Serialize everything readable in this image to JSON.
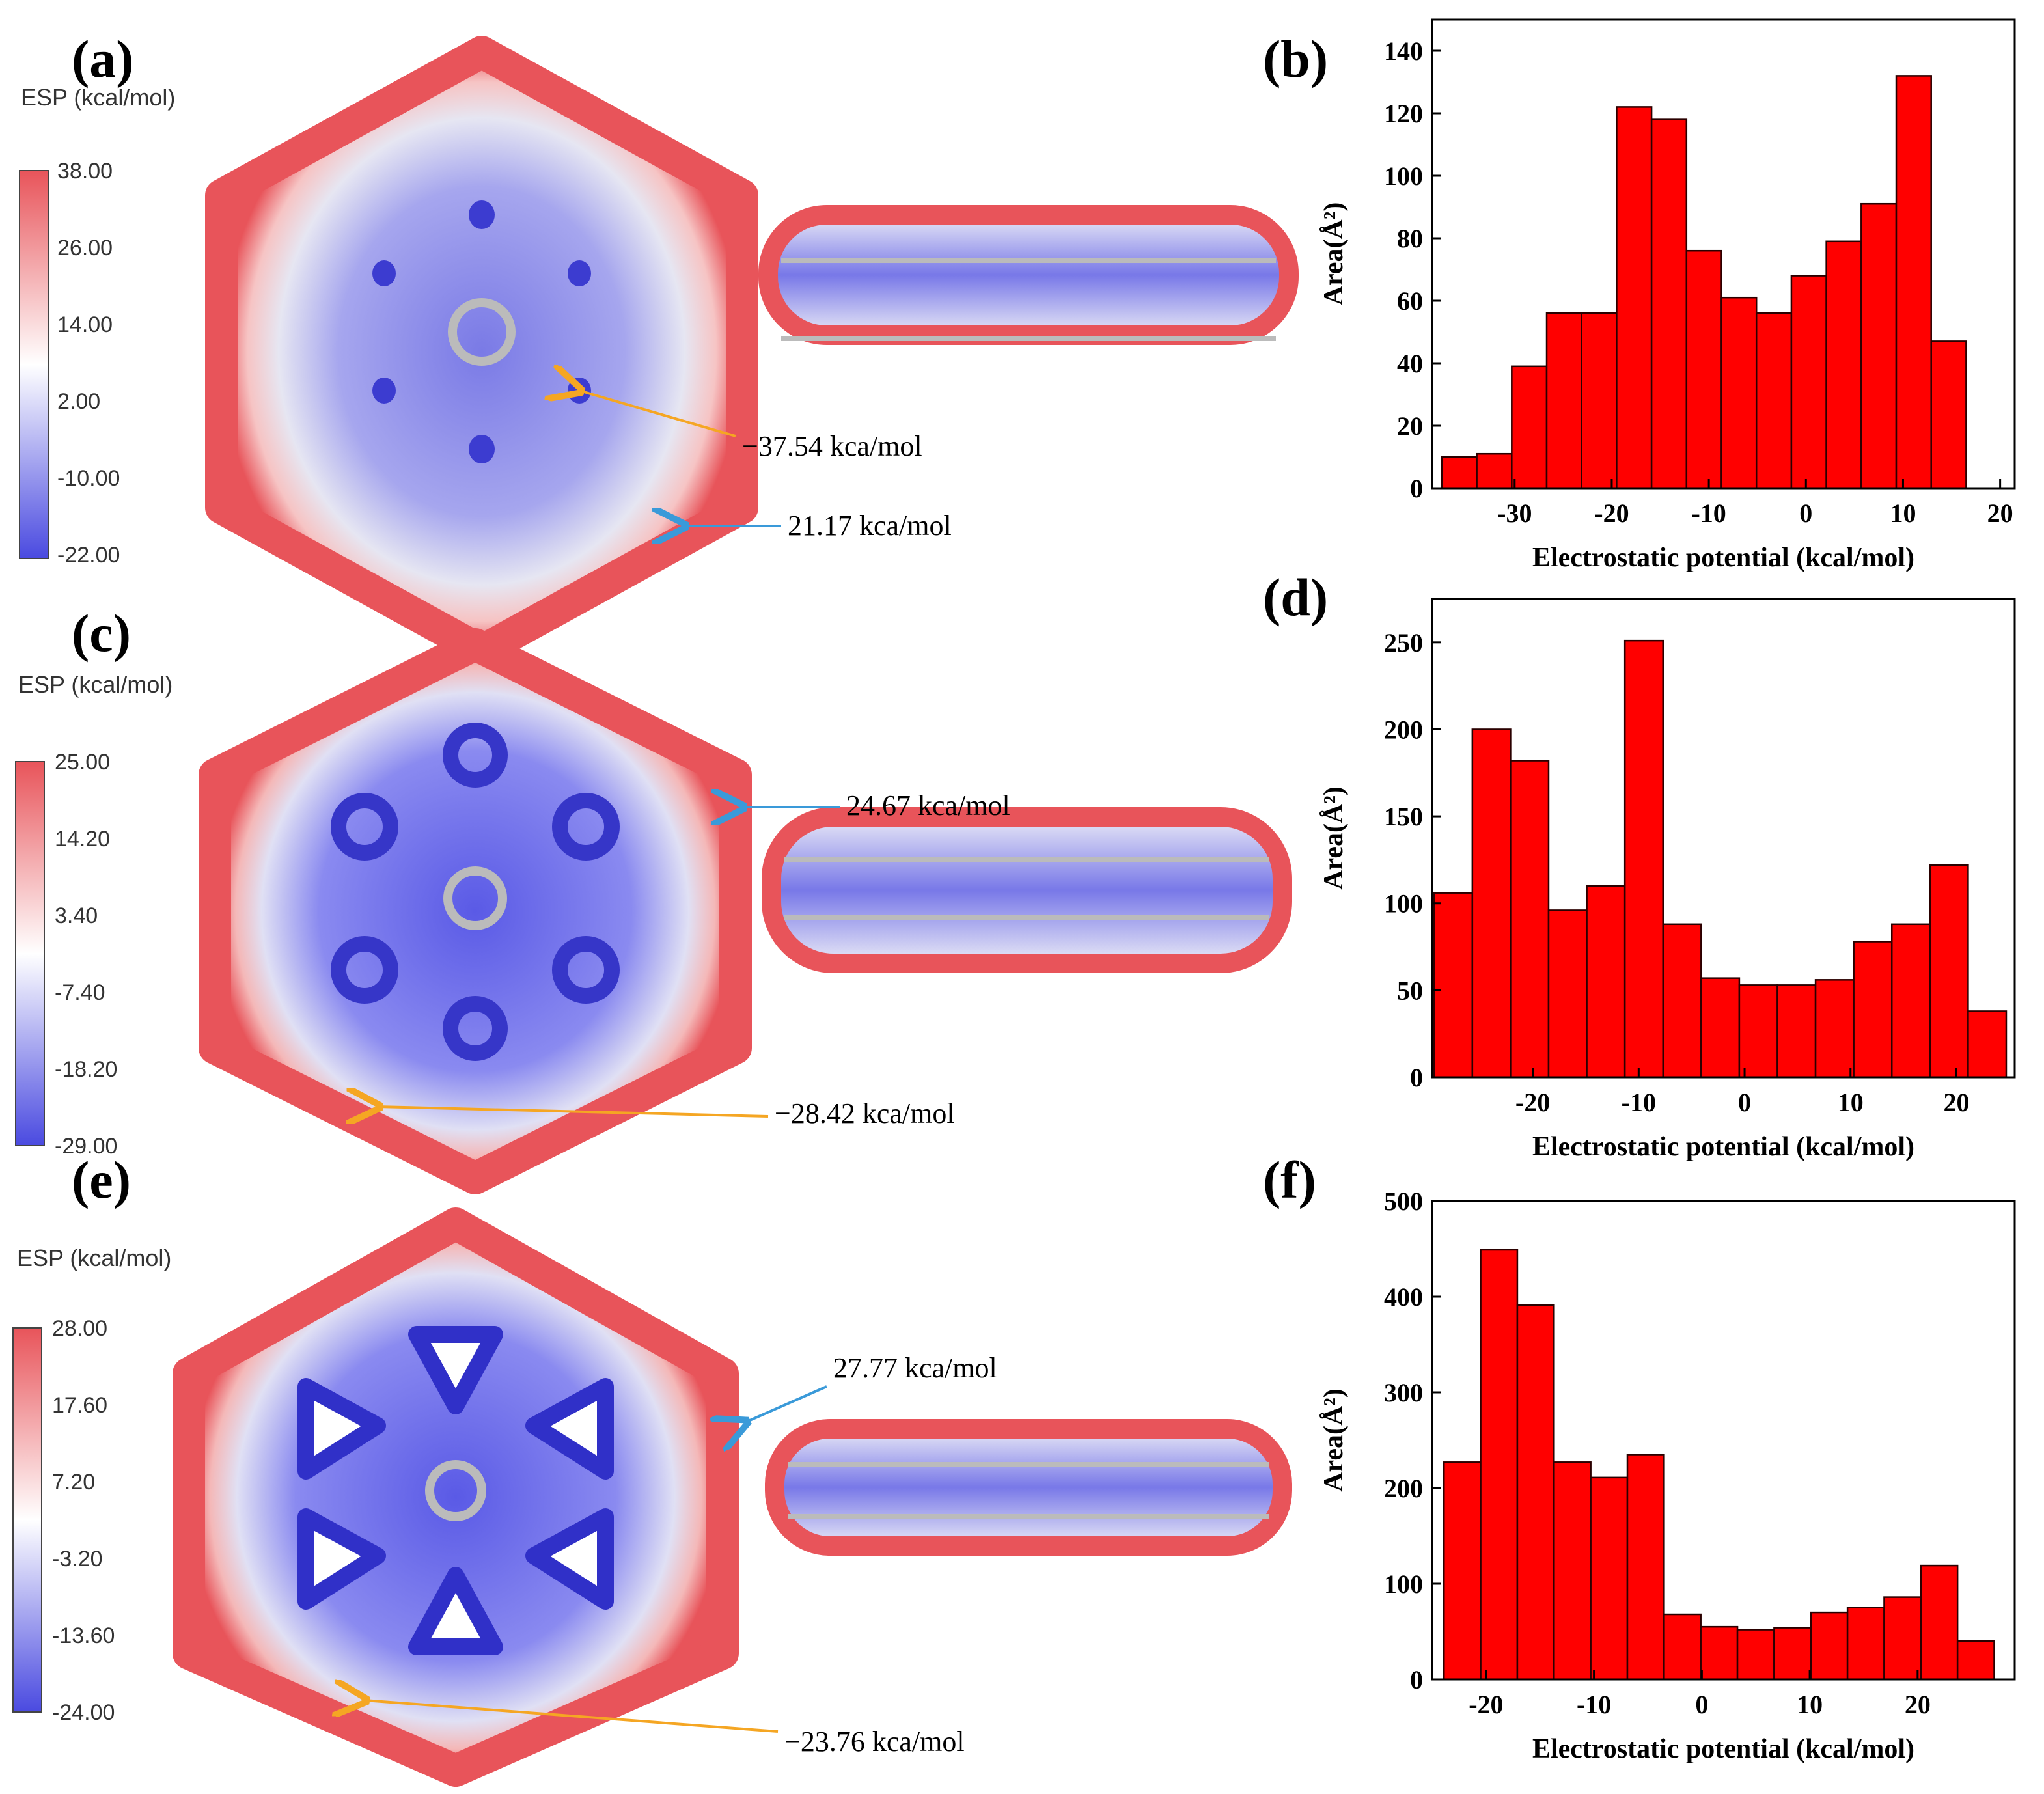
{
  "panels": [
    {
      "letter": "(a)",
      "colorbar": {
        "title": "ESP (kcal/mol)",
        "ticks": [
          "38.00",
          "26.00",
          "14.00",
          "2.00",
          "-10.00",
          "-22.00"
        ]
      },
      "annotations": [
        "−37.54 kca/mol",
        "21.17 kca/mol"
      ]
    },
    {
      "letter": "(c)",
      "colorbar": {
        "title": "ESP (kcal/mol)",
        "ticks": [
          "25.00",
          "14.20",
          "3.40",
          "-7.40",
          "-18.20",
          "-29.00"
        ]
      },
      "annotations": [
        "24.67 kca/mol",
        "−28.42 kca/mol"
      ]
    },
    {
      "letter": "(e)",
      "colorbar": {
        "title": "ESP (kcal/mol)",
        "ticks": [
          "28.00",
          "17.60",
          "7.20",
          "-3.20",
          "-13.60",
          "-24.00"
        ]
      },
      "annotations": [
        "27.77 kca/mol",
        "−23.76 kca/mol"
      ]
    }
  ],
  "colors": {
    "bar_fill": "#ff0000",
    "bar_stroke": "#2a0000",
    "esp_positive": "#e8545a",
    "esp_neutral": "#ffffff",
    "esp_negative": "#4a4ae0",
    "arrow_orange": "#f5a623",
    "arrow_blue": "#3a9ad9"
  },
  "chart_data": [
    {
      "panel": "(b)",
      "type": "bar",
      "xlabel": "Electrostatic potential (kcal/mol)",
      "ylabel": "Area(Å²)",
      "xlim": [
        -38.5,
        21.5
      ],
      "ylim": [
        0,
        150
      ],
      "xticks": [
        -30,
        -20,
        -10,
        0,
        10,
        20
      ],
      "yticks": [
        0,
        20,
        40,
        60,
        80,
        100,
        120,
        140
      ],
      "bin_width": 3.6,
      "x": [
        -35.7,
        -32.1,
        -28.5,
        -24.9,
        -21.3,
        -17.7,
        -14.1,
        -10.5,
        -6.9,
        -3.3,
        0.3,
        3.9,
        7.5,
        11.1,
        14.7,
        18.3
      ],
      "values": [
        10,
        11,
        39,
        56,
        56,
        122,
        118,
        76,
        61,
        56,
        68,
        79,
        91,
        132,
        47,
        0
      ]
    },
    {
      "panel": "(d)",
      "type": "bar",
      "xlabel": "Electrostatic potential (kcal/mol)",
      "ylabel": "Area(Å²)",
      "xlim": [
        -29.5,
        25.5
      ],
      "ylim": [
        0,
        275
      ],
      "xticks": [
        -20,
        -10,
        0,
        10,
        20
      ],
      "yticks": [
        0,
        50,
        100,
        150,
        200,
        250
      ],
      "bin_width": 3.6,
      "x": [
        -27.5,
        -23.9,
        -20.3,
        -16.7,
        -13.1,
        -9.5,
        -5.9,
        -2.3,
        1.3,
        4.9,
        8.5,
        12.1,
        15.7,
        19.3,
        22.9
      ],
      "values": [
        106,
        200,
        182,
        96,
        110,
        251,
        88,
        57,
        53,
        53,
        56,
        78,
        88,
        122,
        38
      ]
    },
    {
      "panel": "(f)",
      "type": "bar",
      "xlabel": "Electrostatic potential (kcal/mol)",
      "ylabel": "Area(Å²)",
      "xlim": [
        -25,
        29
      ],
      "ylim": [
        0,
        500
      ],
      "xticks": [
        -20,
        -10,
        0,
        10,
        20
      ],
      "yticks": [
        0,
        100,
        200,
        300,
        400,
        500
      ],
      "bin_width": 3.4,
      "x": [
        -22.2,
        -18.8,
        -15.4,
        -12.0,
        -8.6,
        -5.2,
        -1.8,
        1.6,
        5.0,
        8.4,
        11.8,
        15.2,
        18.6,
        22.0,
        25.4
      ],
      "values": [
        227,
        449,
        391,
        227,
        211,
        235,
        68,
        55,
        52,
        54,
        70,
        75,
        86,
        119,
        40
      ]
    }
  ]
}
